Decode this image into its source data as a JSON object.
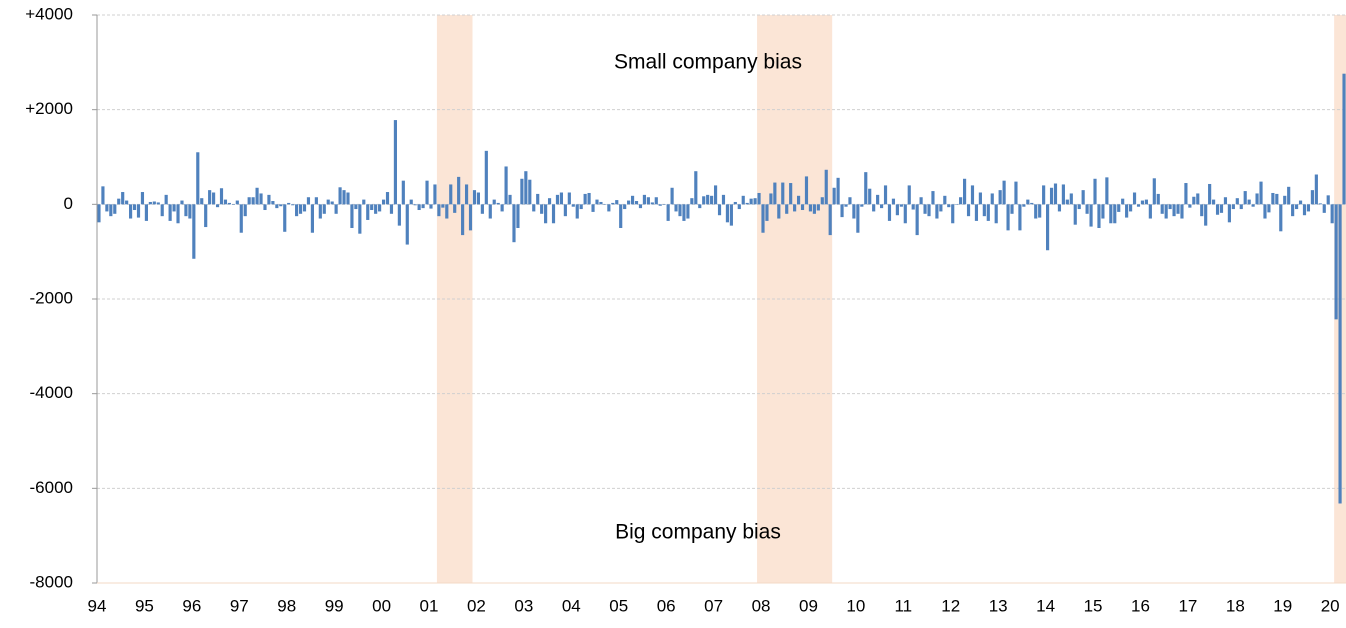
{
  "chart_data": {
    "type": "bar",
    "annotations": [
      "Small company bias",
      "Big company bias"
    ],
    "color": "#4f81bd",
    "shade_color": "#fbe5d6",
    "shaded_ranges": [
      [
        86,
        94
      ],
      [
        167,
        185
      ],
      [
        313,
        315
      ]
    ],
    "grid": true,
    "ylim": [
      -8000,
      4000
    ],
    "yticks": [
      -8000,
      -6000,
      -4000,
      -2000,
      0,
      {
        "value": 2000,
        "label": "+2000"
      },
      {
        "value": 4000,
        "label": "+4000"
      }
    ],
    "categories": [
      "94",
      null,
      null,
      null,
      null,
      null,
      null,
      null,
      null,
      null,
      null,
      null,
      "95",
      null,
      null,
      null,
      null,
      null,
      null,
      null,
      null,
      null,
      null,
      null,
      "96",
      null,
      null,
      null,
      null,
      null,
      null,
      null,
      null,
      null,
      null,
      null,
      "97",
      null,
      null,
      null,
      null,
      null,
      null,
      null,
      null,
      null,
      null,
      null,
      "98",
      null,
      null,
      null,
      null,
      null,
      null,
      null,
      null,
      null,
      null,
      null,
      "99",
      null,
      null,
      null,
      null,
      null,
      null,
      null,
      null,
      null,
      null,
      null,
      "00",
      null,
      null,
      null,
      null,
      null,
      null,
      null,
      null,
      null,
      null,
      null,
      "01",
      null,
      null,
      null,
      null,
      null,
      null,
      null,
      null,
      null,
      null,
      null,
      "02",
      null,
      null,
      null,
      null,
      null,
      null,
      null,
      null,
      null,
      null,
      null,
      "03",
      null,
      null,
      null,
      null,
      null,
      null,
      null,
      null,
      null,
      null,
      null,
      "04",
      null,
      null,
      null,
      null,
      null,
      null,
      null,
      null,
      null,
      null,
      null,
      "05",
      null,
      null,
      null,
      null,
      null,
      null,
      null,
      null,
      null,
      null,
      null,
      "06",
      null,
      null,
      null,
      null,
      null,
      null,
      null,
      null,
      null,
      null,
      null,
      "07",
      null,
      null,
      null,
      null,
      null,
      null,
      null,
      null,
      null,
      null,
      null,
      "08",
      null,
      null,
      null,
      null,
      null,
      null,
      null,
      null,
      null,
      null,
      null,
      "09",
      null,
      null,
      null,
      null,
      null,
      null,
      null,
      null,
      null,
      null,
      null,
      "10",
      null,
      null,
      null,
      null,
      null,
      null,
      null,
      null,
      null,
      null,
      null,
      "11",
      null,
      null,
      null,
      null,
      null,
      null,
      null,
      null,
      null,
      null,
      null,
      "12",
      null,
      null,
      null,
      null,
      null,
      null,
      null,
      null,
      null,
      null,
      null,
      "13",
      null,
      null,
      null,
      null,
      null,
      null,
      null,
      null,
      null,
      null,
      null,
      "14",
      null,
      null,
      null,
      null,
      null,
      null,
      null,
      null,
      null,
      null,
      null,
      "15",
      null,
      null,
      null,
      null,
      null,
      null,
      null,
      null,
      null,
      null,
      null,
      "16",
      null,
      null,
      null,
      null,
      null,
      null,
      null,
      null,
      null,
      null,
      null,
      "17",
      null,
      null,
      null,
      null,
      null,
      null,
      null,
      null,
      null,
      null,
      null,
      "18",
      null,
      null,
      null,
      null,
      null,
      null,
      null,
      null,
      null,
      null,
      null,
      "19",
      null,
      null,
      null,
      null,
      null,
      null,
      null,
      null,
      null,
      null,
      null,
      "20",
      null,
      null,
      null
    ],
    "values": [
      -380,
      380,
      -150,
      -250,
      -200,
      120,
      260,
      80,
      -300,
      -120,
      -280,
      260,
      -350,
      50,
      60,
      40,
      -250,
      200,
      -350,
      -150,
      -400,
      80,
      -250,
      -300,
      -1150,
      1100,
      130,
      -480,
      300,
      250,
      -60,
      340,
      100,
      30,
      0,
      80,
      -600,
      -250,
      150,
      150,
      350,
      230,
      -120,
      200,
      70,
      -80,
      -40,
      -580,
      30,
      -20,
      -250,
      -200,
      -150,
      150,
      -600,
      150,
      -300,
      -200,
      100,
      60,
      -200,
      360,
      300,
      250,
      -500,
      -100,
      -620,
      100,
      -330,
      -120,
      -200,
      -150,
      100,
      260,
      -200,
      1780,
      -450,
      500,
      -850,
      100,
      -20,
      -120,
      -80,
      500,
      -90,
      420,
      -250,
      -70,
      -300,
      420,
      -180,
      580,
      -650,
      420,
      -550,
      300,
      250,
      -200,
      1130,
      -300,
      100,
      30,
      -150,
      800,
      200,
      -800,
      -500,
      540,
      700,
      520,
      -150,
      220,
      -200,
      -400,
      130,
      -400,
      200,
      250,
      -250,
      250,
      -50,
      -300,
      -100,
      220,
      240,
      -160,
      100,
      50,
      0,
      -150,
      30,
      90,
      -500,
      -100,
      80,
      180,
      70,
      -80,
      200,
      150,
      40,
      150,
      -30,
      0,
      -350,
      350,
      -150,
      -250,
      -350,
      -300,
      130,
      700,
      -80,
      170,
      200,
      180,
      400,
      -230,
      200,
      -380,
      -450,
      50,
      -100,
      180,
      30,
      120,
      130,
      240,
      -600,
      -350,
      230,
      460,
      -300,
      460,
      -200,
      450,
      -150,
      180,
      -120,
      590,
      -150,
      -200,
      -130,
      150,
      730,
      -650,
      350,
      560,
      -270,
      -50,
      150,
      -300,
      -600,
      -50,
      680,
      330,
      -150,
      200,
      -80,
      400,
      -350,
      120,
      -230,
      -50,
      -400,
      400,
      -110,
      -650,
      150,
      -200,
      -250,
      280,
      -300,
      -150,
      180,
      -60,
      -400,
      0,
      150,
      540,
      -250,
      400,
      -350,
      250,
      -250,
      -350,
      230,
      -400,
      300,
      500,
      -550,
      -200,
      480,
      -550,
      -50,
      100,
      30,
      -300,
      -280,
      400,
      -970,
      350,
      440,
      -150,
      420,
      100,
      230,
      -430,
      -100,
      300,
      -200,
      -470,
      540,
      -500,
      -300,
      570,
      -400,
      -400,
      -160,
      120,
      -280,
      -150,
      250,
      -50,
      80,
      100,
      -300,
      550,
      220,
      -200,
      -300,
      -100,
      -250,
      -200,
      -300,
      450,
      -70,
      160,
      230,
      -250,
      -450,
      430,
      100,
      -220,
      -180,
      150,
      -380,
      -100,
      130,
      -100,
      280,
      100,
      -50,
      230,
      480,
      -300,
      -170,
      240,
      220,
      -570,
      180,
      370,
      -250,
      -100,
      80,
      -230,
      -150,
      300,
      630,
      20,
      -180,
      190,
      -400,
      -2430,
      -6320,
      2760
    ]
  }
}
